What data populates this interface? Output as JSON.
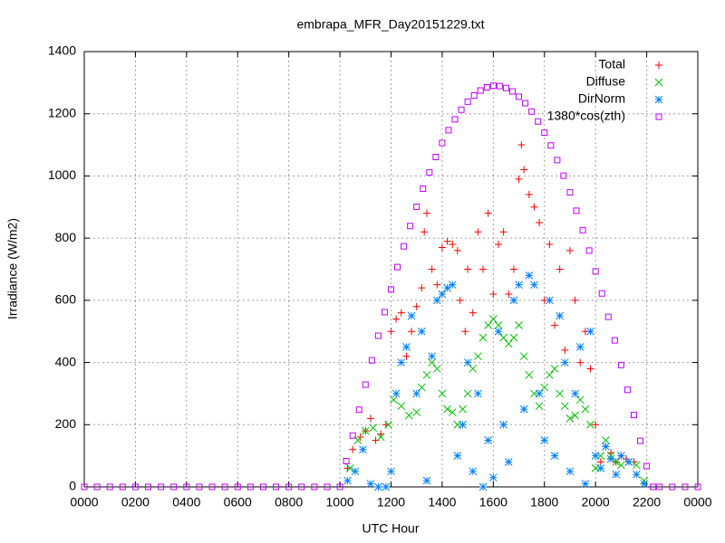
{
  "chart_data": {
    "type": "scatter",
    "title": "embrapa_MFR_Day20151229.txt",
    "x_label": "UTC Hour",
    "y_label": "Irradiance (W/m2)",
    "xlim": [
      0,
      24
    ],
    "ylim": [
      0,
      1400
    ],
    "xticks": [
      {
        "value": 0,
        "label": "0000"
      },
      {
        "value": 2,
        "label": "0200"
      },
      {
        "value": 4,
        "label": "0400"
      },
      {
        "value": 6,
        "label": "0600"
      },
      {
        "value": 8,
        "label": "0800"
      },
      {
        "value": 10,
        "label": "1000"
      },
      {
        "value": 12,
        "label": "1200"
      },
      {
        "value": 14,
        "label": "1400"
      },
      {
        "value": 16,
        "label": "1600"
      },
      {
        "value": 18,
        "label": "1800"
      },
      {
        "value": 20,
        "label": "2000"
      },
      {
        "value": 22,
        "label": "2200"
      },
      {
        "value": 24,
        "label": "0000"
      }
    ],
    "yticks": [
      0,
      200,
      400,
      600,
      800,
      1000,
      1200,
      1400
    ],
    "grid": true,
    "legend": "top-right",
    "series": [
      {
        "name": "Total",
        "color": "#ff0000",
        "marker": "plus",
        "x": [
          10.3,
          10.5,
          10.8,
          11.0,
          11.2,
          11.4,
          11.6,
          11.8,
          12.0,
          12.2,
          12.4,
          12.6,
          12.8,
          13.0,
          13.2,
          13.3,
          13.4,
          13.6,
          13.8,
          14.0,
          14.2,
          14.4,
          14.6,
          14.7,
          14.9,
          15.0,
          15.2,
          15.4,
          15.6,
          15.8,
          16.0,
          16.2,
          16.4,
          16.6,
          16.8,
          17.0,
          17.1,
          17.2,
          17.4,
          17.6,
          17.8,
          18.0,
          18.2,
          18.4,
          18.6,
          18.8,
          19.0,
          19.2,
          19.4,
          19.6,
          19.8,
          20.0,
          20.2,
          20.4,
          20.6,
          20.8,
          21.0,
          21.2,
          21.5
        ],
        "values": [
          60,
          120,
          160,
          180,
          220,
          150,
          170,
          200,
          500,
          540,
          560,
          420,
          500,
          580,
          640,
          820,
          880,
          700,
          650,
          770,
          790,
          780,
          760,
          600,
          500,
          700,
          560,
          820,
          700,
          880,
          620,
          780,
          820,
          620,
          700,
          990,
          1100,
          1020,
          940,
          900,
          850,
          600,
          780,
          520,
          700,
          440,
          760,
          600,
          400,
          500,
          380,
          200,
          80,
          130,
          110,
          80,
          100,
          90,
          80
        ]
      },
      {
        "name": "Diffuse",
        "color": "#00c000",
        "marker": "cross",
        "x": [
          10.4,
          10.7,
          11.0,
          11.3,
          11.6,
          11.9,
          12.1,
          12.4,
          12.7,
          13.0,
          13.2,
          13.4,
          13.6,
          13.8,
          14.0,
          14.2,
          14.4,
          14.6,
          14.8,
          15.0,
          15.2,
          15.4,
          15.6,
          15.8,
          16.0,
          16.2,
          16.4,
          16.6,
          16.8,
          17.0,
          17.2,
          17.4,
          17.6,
          17.8,
          18.0,
          18.2,
          18.4,
          18.6,
          18.8,
          19.0,
          19.2,
          19.4,
          19.6,
          19.8,
          20.0,
          20.2,
          20.4,
          20.6,
          20.8,
          21.0,
          21.3,
          21.6,
          21.9
        ],
        "values": [
          60,
          150,
          180,
          190,
          160,
          200,
          280,
          260,
          230,
          240,
          320,
          360,
          400,
          380,
          300,
          250,
          240,
          200,
          250,
          300,
          380,
          420,
          480,
          520,
          540,
          520,
          480,
          460,
          480,
          520,
          420,
          360,
          300,
          260,
          320,
          360,
          380,
          300,
          260,
          220,
          230,
          280,
          250,
          200,
          60,
          100,
          150,
          100,
          80,
          70,
          80,
          70,
          20
        ]
      },
      {
        "name": "DirNorm",
        "color": "#0080ff",
        "marker": "star",
        "x": [
          10.3,
          10.6,
          10.9,
          11.2,
          11.5,
          11.8,
          12.0,
          12.2,
          12.4,
          12.6,
          12.8,
          13.0,
          13.2,
          13.4,
          13.6,
          13.8,
          14.0,
          14.2,
          14.4,
          14.6,
          14.8,
          15.0,
          15.2,
          15.4,
          15.6,
          15.8,
          16.0,
          16.2,
          16.4,
          16.6,
          16.8,
          17.0,
          17.2,
          17.4,
          17.6,
          17.8,
          18.0,
          18.2,
          18.4,
          18.6,
          18.8,
          19.0,
          19.2,
          19.4,
          19.6,
          19.8,
          20.0,
          20.2,
          20.4,
          20.6,
          20.8,
          21.0,
          21.3,
          21.6,
          21.9
        ],
        "values": [
          20,
          50,
          120,
          10,
          0,
          0,
          50,
          300,
          400,
          450,
          550,
          300,
          500,
          20,
          420,
          600,
          620,
          640,
          650,
          100,
          200,
          400,
          50,
          300,
          0,
          150,
          30,
          500,
          200,
          80,
          600,
          650,
          250,
          680,
          650,
          300,
          150,
          600,
          100,
          550,
          400,
          50,
          300,
          450,
          10,
          500,
          100,
          60,
          130,
          90,
          40,
          100,
          80,
          40,
          10
        ]
      },
      {
        "name": "1380*cos(zth)",
        "color": "#c000ff",
        "marker": "square",
        "x": [
          0,
          0.5,
          1,
          1.5,
          2,
          2.5,
          3,
          3.5,
          4,
          4.5,
          5,
          5.5,
          6,
          6.5,
          7,
          7.5,
          8,
          8.5,
          9,
          9.5,
          10,
          10.25,
          10.5,
          10.75,
          11,
          11.25,
          11.5,
          11.75,
          12,
          12.25,
          12.5,
          12.75,
          13,
          13.25,
          13.5,
          13.75,
          14,
          14.25,
          14.5,
          14.75,
          15,
          15.25,
          15.5,
          15.75,
          16,
          16.25,
          16.5,
          16.75,
          17,
          17.25,
          17.5,
          17.75,
          18,
          18.25,
          18.5,
          18.75,
          19,
          19.25,
          19.5,
          19.75,
          20,
          20.25,
          20.5,
          20.75,
          21,
          21.25,
          21.5,
          21.75,
          22,
          22.25,
          22.5,
          23,
          23.5,
          24
        ],
        "values": [
          0,
          0,
          0,
          0,
          0,
          0,
          0,
          0,
          0,
          0,
          0,
          0,
          0,
          0,
          0,
          0,
          0,
          0,
          0,
          0,
          0,
          83,
          165,
          248,
          329,
          407,
          486,
          562,
          635,
          707,
          774,
          839,
          901,
          959,
          1011,
          1061,
          1106,
          1147,
          1182,
          1213,
          1239,
          1259,
          1275,
          1285,
          1290,
          1289,
          1283,
          1272,
          1255,
          1234,
          1207,
          1175,
          1139,
          1098,
          1051,
          1001,
          947,
          888,
          826,
          760,
          693,
          622,
          547,
          471,
          392,
          312,
          231,
          148,
          67,
          0,
          0,
          0,
          0,
          0
        ]
      }
    ]
  }
}
